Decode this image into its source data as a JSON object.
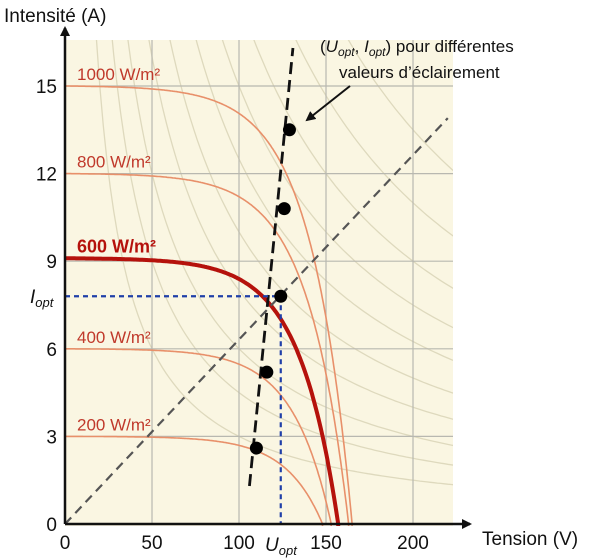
{
  "chart_data": {
    "type": "line",
    "xlabel": "Tension (V)",
    "ylabel": "Intensité (A)",
    "xlim": [
      0,
      225
    ],
    "ylim": [
      0,
      16.5
    ],
    "x_ticks": [
      "0",
      "50",
      "100",
      "150",
      "200"
    ],
    "y_ticks": [
      "0",
      "3",
      "6",
      "9",
      "12",
      "15"
    ],
    "grid": true,
    "colors": {
      "plot_background": "#faf6e2",
      "grid": "#b8b8b0",
      "curve": "#e8906a",
      "highlight_curve": "#b5120c",
      "hyperbola": "#ded9bd",
      "label": "#c0392b",
      "guide": "#1f3fa8",
      "dashed": "#555555"
    },
    "series": [
      {
        "name": "1000 W/m²",
        "isc": 15.0,
        "voc": 165,
        "highlight": false
      },
      {
        "name": "800 W/m²",
        "isc": 12.0,
        "voc": 163,
        "highlight": false
      },
      {
        "name": "600 W/m²",
        "isc": 9.1,
        "voc": 157,
        "highlight": true
      },
      {
        "name": "400 W/m²",
        "isc": 6.0,
        "voc": 153,
        "highlight": false
      },
      {
        "name": "200 W/m²",
        "isc": 3.0,
        "voc": 148,
        "highlight": false
      }
    ],
    "optimal_points": [
      {
        "x": 110,
        "y": 2.6
      },
      {
        "x": 116,
        "y": 5.2
      },
      {
        "x": 124,
        "y": 7.8
      },
      {
        "x": 126,
        "y": 10.8
      },
      {
        "x": 129,
        "y": 13.5
      }
    ],
    "mpp_trend_line": [
      [
        106,
        1.3
      ],
      [
        131,
        16.3
      ]
    ],
    "diagonal_line": [
      [
        0,
        0
      ],
      [
        220,
        13.9
      ]
    ],
    "constant_power_curves_kw": [
      0.3,
      0.45,
      0.6,
      0.8,
      1.0,
      1.25,
      1.5,
      1.8,
      2.2,
      2.7
    ],
    "guides": {
      "x_value": 124,
      "y_value": 7.8
    },
    "annotations": {
      "u_opt_label": "U",
      "u_opt_sub": "opt",
      "i_opt_label": "I",
      "i_opt_sub": "opt",
      "callout_open": "(",
      "callout_u": "U",
      "callout_u_sub": "opt",
      "callout_sep": ", ",
      "callout_i": "I",
      "callout_i_sub": "opt",
      "callout_close": ") pour différentes",
      "callout_line2": "valeurs d’éclairement"
    }
  }
}
